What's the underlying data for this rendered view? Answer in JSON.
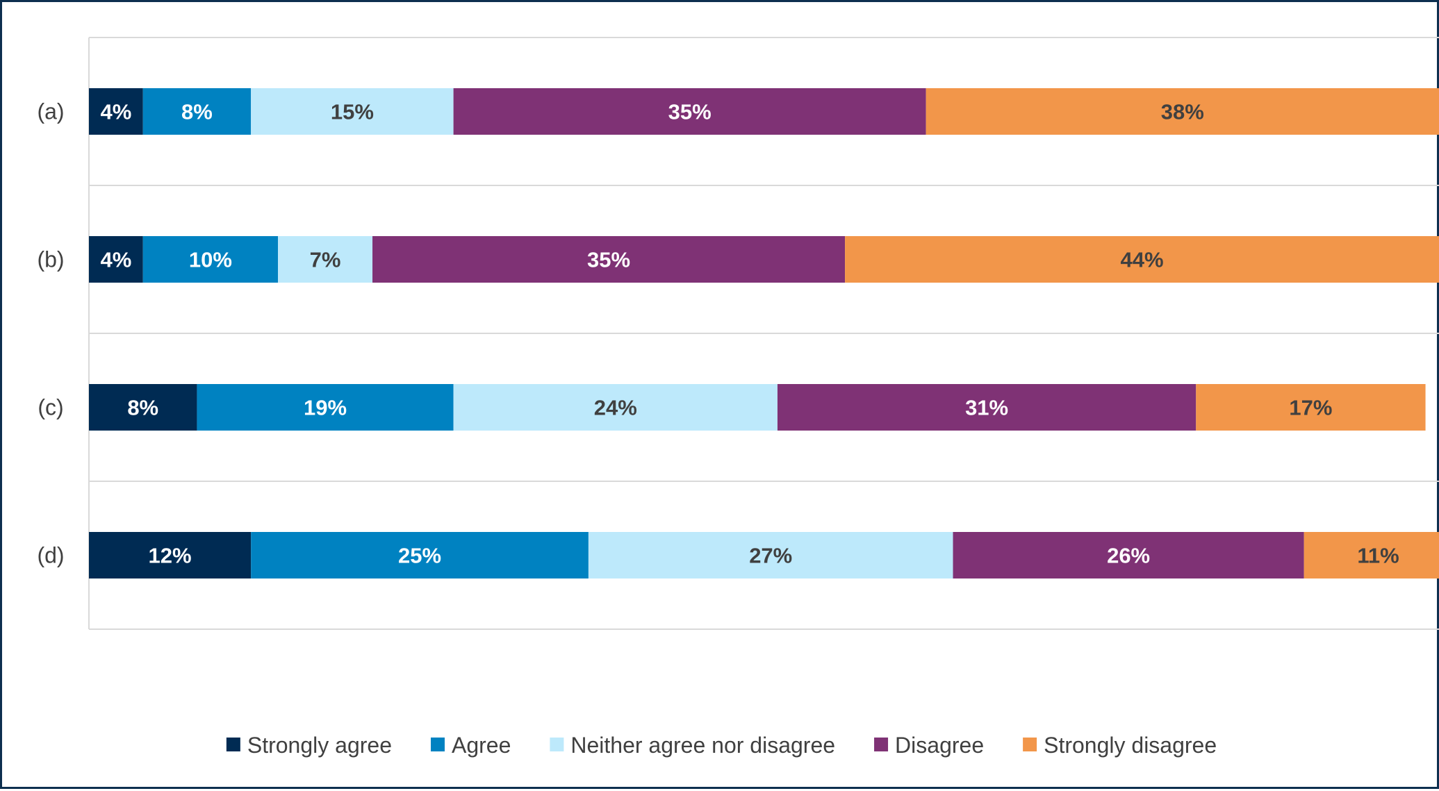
{
  "chart_data": {
    "type": "bar",
    "orientation": "horizontal",
    "stacked": true,
    "normalized": "percent",
    "categories": [
      "(a)",
      "(b)",
      "(c)",
      "(d)"
    ],
    "series": [
      {
        "name": "Strongly agree",
        "color": "#002b53",
        "label_color": "#ffffff",
        "values": [
          4,
          4,
          8,
          12
        ],
        "labels": [
          "4%",
          "4%",
          "8%",
          "12%"
        ]
      },
      {
        "name": "Agree",
        "color": "#0082c1",
        "label_color": "#ffffff",
        "values": [
          8,
          10,
          19,
          25
        ],
        "labels": [
          "8%",
          "10%",
          "19%",
          "25%"
        ]
      },
      {
        "name": "Neither agree nor disagree",
        "color": "#bde9fb",
        "label_color": "#404040",
        "values": [
          15,
          7,
          24,
          27
        ],
        "labels": [
          "15%",
          "7%",
          "24%",
          "27%"
        ]
      },
      {
        "name": "Disagree",
        "color": "#7f3275",
        "label_color": "#ffffff",
        "values": [
          35,
          35,
          31,
          26
        ],
        "labels": [
          "35%",
          "35%",
          "31%",
          "26%"
        ]
      },
      {
        "name": "Strongly disagree",
        "color": "#f2964a",
        "label_color": "#404040",
        "values": [
          38,
          44,
          17,
          11
        ],
        "labels": [
          "38%",
          "44%",
          "17%",
          "11%"
        ]
      }
    ],
    "title": "",
    "xlabel": "",
    "ylabel": "",
    "xlim": [
      0,
      100
    ],
    "grid": true,
    "legend": "bottom"
  }
}
